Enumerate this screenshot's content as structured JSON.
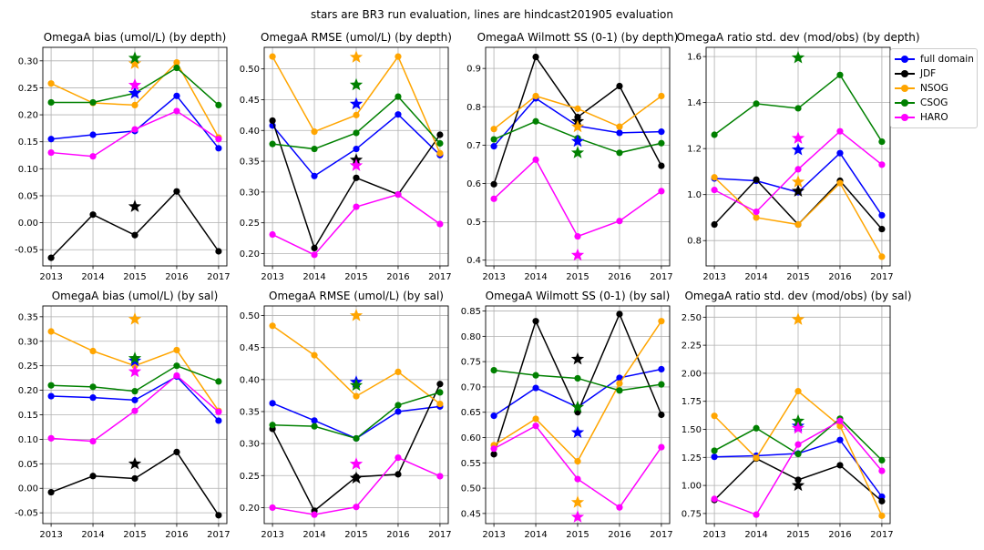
{
  "suptitle": "stars are BR3 run evaluation, lines are hindcast201905 evaluation",
  "legend": {
    "items": [
      {
        "label": "full domain",
        "color": "#0000ff"
      },
      {
        "label": "JDF",
        "color": "#000000"
      },
      {
        "label": "NSOG",
        "color": "#ffa500"
      },
      {
        "label": "CSOG",
        "color": "#008000"
      },
      {
        "label": "HARO",
        "color": "#ff00ff"
      }
    ]
  },
  "chart_data": [
    {
      "type": "line",
      "title": "OmegaA bias (umol/L) (by depth)",
      "x": [
        "2013",
        "2014",
        "2015",
        "2016",
        "2017"
      ],
      "ylim": [
        -0.08,
        0.325
      ],
      "yticks": [
        "-0.05",
        "0.00",
        "0.05",
        "0.10",
        "0.15",
        "0.20",
        "0.25",
        "0.30"
      ],
      "series": [
        {
          "name": "full domain",
          "color": "#0000ff",
          "values": [
            0.155,
            0.163,
            0.17,
            0.235,
            0.138
          ],
          "star": 0.24
        },
        {
          "name": "JDF",
          "color": "#000000",
          "values": [
            -0.065,
            0.015,
            -0.023,
            0.058,
            -0.053
          ],
          "star": 0.03
        },
        {
          "name": "NSOG",
          "color": "#ffa500",
          "values": [
            0.258,
            0.222,
            0.218,
            0.297,
            0.158
          ],
          "star": 0.295
        },
        {
          "name": "CSOG",
          "color": "#008000",
          "values": [
            0.223,
            0.223,
            0.24,
            0.287,
            0.218
          ],
          "star": 0.305
        },
        {
          "name": "HARO",
          "color": "#ff00ff",
          "values": [
            0.13,
            0.123,
            0.173,
            0.207,
            0.155
          ],
          "star": 0.255
        }
      ]
    },
    {
      "type": "line",
      "title": "OmegaA RMSE (umol/L) (by depth)",
      "x": [
        "2013",
        "2014",
        "2015",
        "2016",
        "2017"
      ],
      "ylim": [
        0.18,
        0.535
      ],
      "yticks": [
        "0.20",
        "0.25",
        "0.30",
        "0.35",
        "0.40",
        "0.45",
        "0.50"
      ],
      "series": [
        {
          "name": "full domain",
          "color": "#0000ff",
          "values": [
            0.408,
            0.326,
            0.37,
            0.426,
            0.36
          ],
          "star": 0.443
        },
        {
          "name": "JDF",
          "color": "#000000",
          "values": [
            0.416,
            0.209,
            0.323,
            0.296,
            0.393
          ],
          "star": 0.352
        },
        {
          "name": "NSOG",
          "color": "#ffa500",
          "values": [
            0.52,
            0.398,
            0.425,
            0.52,
            0.363
          ],
          "star": 0.519
        },
        {
          "name": "CSOG",
          "color": "#008000",
          "values": [
            0.378,
            0.37,
            0.396,
            0.455,
            0.379
          ],
          "star": 0.474
        },
        {
          "name": "HARO",
          "color": "#ff00ff",
          "values": [
            0.231,
            0.198,
            0.276,
            0.296,
            0.248
          ],
          "star": 0.343
        }
      ]
    },
    {
      "type": "line",
      "title": "OmegaA Wilmott SS (0-1) (by depth)",
      "x": [
        "2013",
        "2014",
        "2015",
        "2016",
        "2017"
      ],
      "ylim": [
        0.385,
        0.955
      ],
      "yticks": [
        "0.4",
        "0.5",
        "0.6",
        "0.7",
        "0.8",
        "0.9"
      ],
      "series": [
        {
          "name": "full domain",
          "color": "#0000ff",
          "values": [
            0.697,
            0.822,
            0.75,
            0.732,
            0.735
          ],
          "star": 0.71
        },
        {
          "name": "JDF",
          "color": "#000000",
          "values": [
            0.598,
            0.93,
            0.773,
            0.854,
            0.646
          ],
          "star": 0.762
        },
        {
          "name": "NSOG",
          "color": "#ffa500",
          "values": [
            0.742,
            0.828,
            0.795,
            0.748,
            0.828
          ],
          "star": 0.748
        },
        {
          "name": "CSOG",
          "color": "#008000",
          "values": [
            0.715,
            0.762,
            0.718,
            0.68,
            0.705
          ],
          "star": 0.68
        },
        {
          "name": "HARO",
          "color": "#ff00ff",
          "values": [
            0.56,
            0.662,
            0.462,
            0.502,
            0.58
          ],
          "star": 0.413
        }
      ]
    },
    {
      "type": "line",
      "title": "OmegaA ratio std. dev (mod/obs) (by depth)",
      "x": [
        "2013",
        "2014",
        "2015",
        "2016",
        "2017"
      ],
      "ylim": [
        0.69,
        1.64
      ],
      "yticks": [
        "0.8",
        "1.0",
        "1.2",
        "1.4",
        "1.6"
      ],
      "series": [
        {
          "name": "full domain",
          "color": "#0000ff",
          "values": [
            1.07,
            1.06,
            1.01,
            1.18,
            0.91
          ],
          "star": 1.195
        },
        {
          "name": "JDF",
          "color": "#000000",
          "values": [
            0.87,
            1.065,
            0.87,
            1.06,
            0.85
          ],
          "star": 1.015
        },
        {
          "name": "NSOG",
          "color": "#ffa500",
          "values": [
            1.075,
            0.9,
            0.87,
            1.05,
            0.73
          ],
          "star": 1.055
        },
        {
          "name": "CSOG",
          "color": "#008000",
          "values": [
            1.26,
            1.395,
            1.375,
            1.52,
            1.23
          ],
          "star": 1.595
        },
        {
          "name": "HARO",
          "color": "#ff00ff",
          "values": [
            1.02,
            0.925,
            1.11,
            1.275,
            1.13
          ],
          "star": 1.245
        }
      ]
    },
    {
      "type": "line",
      "title": "OmegaA bias (umol/L) (by sal)",
      "x": [
        "2013",
        "2014",
        "2015",
        "2016",
        "2017"
      ],
      "ylim": [
        -0.072,
        0.372
      ],
      "yticks": [
        "-0.05",
        "0.00",
        "0.05",
        "0.10",
        "0.15",
        "0.20",
        "0.25",
        "0.30",
        "0.35"
      ],
      "series": [
        {
          "name": "full domain",
          "color": "#0000ff",
          "values": [
            0.188,
            0.185,
            0.18,
            0.228,
            0.138
          ],
          "star": 0.26
        },
        {
          "name": "JDF",
          "color": "#000000",
          "values": [
            -0.008,
            0.025,
            0.02,
            0.074,
            -0.055
          ],
          "star": 0.05
        },
        {
          "name": "NSOG",
          "color": "#ffa500",
          "values": [
            0.32,
            0.28,
            0.25,
            0.282,
            0.158
          ],
          "star": 0.345
        },
        {
          "name": "CSOG",
          "color": "#008000",
          "values": [
            0.21,
            0.207,
            0.198,
            0.25,
            0.218
          ],
          "star": 0.265
        },
        {
          "name": "HARO",
          "color": "#ff00ff",
          "values": [
            0.102,
            0.096,
            0.158,
            0.23,
            0.156
          ],
          "star": 0.238
        }
      ]
    },
    {
      "type": "line",
      "title": "OmegaA RMSE (umol/L) (by sal)",
      "x": [
        "2013",
        "2014",
        "2015",
        "2016",
        "2017"
      ],
      "ylim": [
        0.175,
        0.515
      ],
      "yticks": [
        "0.20",
        "0.25",
        "0.30",
        "0.35",
        "0.40",
        "0.45",
        "0.50"
      ],
      "series": [
        {
          "name": "full domain",
          "color": "#0000ff",
          "values": [
            0.363,
            0.336,
            0.308,
            0.35,
            0.358
          ],
          "star": 0.396
        },
        {
          "name": "JDF",
          "color": "#000000",
          "values": [
            0.323,
            0.195,
            0.248,
            0.252,
            0.393
          ],
          "star": 0.246
        },
        {
          "name": "NSOG",
          "color": "#ffa500",
          "values": [
            0.484,
            0.438,
            0.374,
            0.412,
            0.362
          ],
          "star": 0.5
        },
        {
          "name": "CSOG",
          "color": "#008000",
          "values": [
            0.329,
            0.327,
            0.308,
            0.36,
            0.38
          ],
          "star": 0.391
        },
        {
          "name": "HARO",
          "color": "#ff00ff",
          "values": [
            0.2,
            0.189,
            0.201,
            0.278,
            0.249
          ],
          "star": 0.268
        }
      ]
    },
    {
      "type": "line",
      "title": "OmegaA Wilmott SS (0-1) (by sal)",
      "x": [
        "2013",
        "2014",
        "2015",
        "2016",
        "2017"
      ],
      "ylim": [
        0.43,
        0.86
      ],
      "yticks": [
        "0.45",
        "0.50",
        "0.55",
        "0.60",
        "0.65",
        "0.70",
        "0.75",
        "0.80",
        "0.85"
      ],
      "series": [
        {
          "name": "full domain",
          "color": "#0000ff",
          "values": [
            0.643,
            0.698,
            0.66,
            0.718,
            0.735
          ],
          "star": 0.61
        },
        {
          "name": "JDF",
          "color": "#000000",
          "values": [
            0.567,
            0.83,
            0.65,
            0.844,
            0.645
          ],
          "star": 0.755
        },
        {
          "name": "NSOG",
          "color": "#ffa500",
          "values": [
            0.585,
            0.637,
            0.553,
            0.707,
            0.83
          ],
          "star": 0.472
        },
        {
          "name": "CSOG",
          "color": "#008000",
          "values": [
            0.733,
            0.723,
            0.717,
            0.693,
            0.705
          ],
          "star": 0.66
        },
        {
          "name": "HARO",
          "color": "#ff00ff",
          "values": [
            0.578,
            0.623,
            0.518,
            0.462,
            0.581
          ],
          "star": 0.443
        }
      ]
    },
    {
      "type": "line",
      "title": "OmegaA ratio std. dev (mod/obs) (by sal)",
      "x": [
        "2013",
        "2014",
        "2015",
        "2016",
        "2017"
      ],
      "ylim": [
        0.66,
        2.6
      ],
      "yticks": [
        "0.75",
        "1.00",
        "1.25",
        "1.50",
        "1.75",
        "2.00",
        "2.25",
        "2.50"
      ],
      "series": [
        {
          "name": "full domain",
          "color": "#0000ff",
          "values": [
            1.255,
            1.265,
            1.285,
            1.405,
            0.9
          ],
          "star": 1.53
        },
        {
          "name": "JDF",
          "color": "#000000",
          "values": [
            0.87,
            1.24,
            1.05,
            1.18,
            0.86
          ],
          "star": 1.0
        },
        {
          "name": "NSOG",
          "color": "#ffa500",
          "values": [
            1.62,
            1.245,
            1.84,
            1.53,
            0.73
          ],
          "star": 2.48
        },
        {
          "name": "CSOG",
          "color": "#008000",
          "values": [
            1.31,
            1.51,
            1.28,
            1.595,
            1.225
          ],
          "star": 1.575
        },
        {
          "name": "HARO",
          "color": "#ff00ff",
          "values": [
            0.88,
            0.74,
            1.365,
            1.575,
            1.13
          ],
          "star": 1.51
        }
      ]
    }
  ]
}
